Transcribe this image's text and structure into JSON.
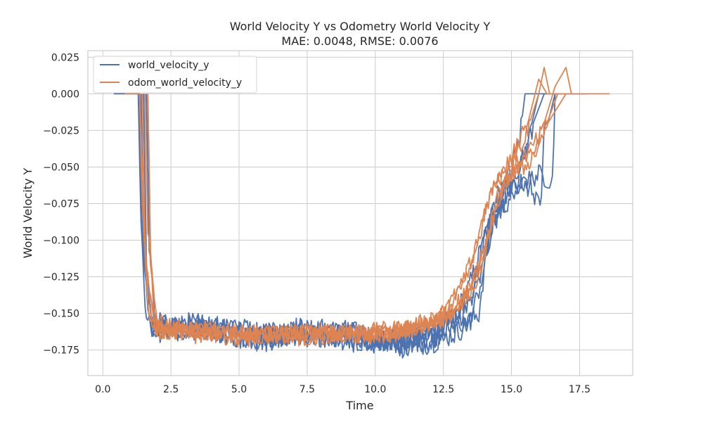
{
  "chart_data": {
    "type": "line",
    "title": "World Velocity Y vs Odometry World Velocity Y",
    "subtitle": "MAE: 0.0048, RMSE: 0.0076",
    "xlabel": "Time",
    "ylabel": "World Velocity Y",
    "xlim": [
      -0.55,
      19.45
    ],
    "ylim": [
      -0.1925,
      0.0295
    ],
    "xticks": [
      0,
      2.5,
      5,
      7.5,
      10,
      12.5,
      15,
      17.5
    ],
    "xtick_labels": [
      "0.0",
      "2.5",
      "5.0",
      "7.5",
      "10.0",
      "12.5",
      "15.0",
      "17.5"
    ],
    "yticks": [
      0.025,
      0.0,
      -0.025,
      -0.05,
      -0.075,
      -0.1,
      -0.125,
      -0.15,
      -0.175
    ],
    "ytick_labels": [
      "0.025",
      "0.000",
      "−0.025",
      "−0.050",
      "−0.075",
      "−0.100",
      "−0.125",
      "−0.150",
      "−0.175"
    ],
    "grid": true,
    "legend_position": "top-left",
    "series": [
      {
        "name": "world_velocity_y",
        "color": "#4c72b0",
        "runs": [
          {
            "x": [
              0.4,
              1.3,
              1.5,
              1.8,
              2.2,
              3.0,
              4.0,
              5.0,
              6.0,
              7.0,
              8.0,
              9.0,
              10.0,
              11.0,
              12.0,
              12.5,
              13.0,
              13.5,
              14.0,
              14.5,
              15.0,
              15.3,
              15.5,
              16.0,
              17.8
            ],
            "y": [
              0.0,
              0.0,
              -0.12,
              -0.16,
              -0.158,
              -0.162,
              -0.16,
              -0.165,
              -0.168,
              -0.163,
              -0.165,
              -0.167,
              -0.17,
              -0.172,
              -0.168,
              -0.16,
              -0.15,
              -0.13,
              -0.1,
              -0.07,
              -0.05,
              -0.03,
              0.0,
              0.0,
              0.0
            ],
            "noise": 0.009
          },
          {
            "x": [
              1.3,
              1.4,
              1.6,
              2.0,
              3.0,
              4.0,
              5.0,
              6.0,
              7.0,
              8.0,
              9.0,
              10.0,
              11.0,
              12.0,
              12.8,
              13.5,
              14.0,
              14.5,
              15.0,
              15.5,
              16.0
            ],
            "y": [
              0.0,
              -0.09,
              -0.155,
              -0.16,
              -0.158,
              -0.16,
              -0.165,
              -0.168,
              -0.16,
              -0.165,
              -0.163,
              -0.168,
              -0.17,
              -0.166,
              -0.158,
              -0.14,
              -0.1,
              -0.07,
              -0.06,
              -0.04,
              0.0
            ],
            "noise": 0.009
          },
          {
            "x": [
              1.4,
              1.5,
              1.7,
              2.2,
              3.0,
              4.0,
              5.0,
              6.0,
              7.0,
              8.0,
              9.0,
              10.0,
              11.0,
              12.0,
              13.0,
              13.8,
              14.2,
              14.8,
              15.2,
              15.8,
              16.2
            ],
            "y": [
              0.0,
              -0.1,
              -0.158,
              -0.163,
              -0.16,
              -0.162,
              -0.166,
              -0.164,
              -0.163,
              -0.165,
              -0.168,
              -0.166,
              -0.172,
              -0.17,
              -0.163,
              -0.15,
              -0.09,
              -0.075,
              -0.06,
              -0.02,
              0.0
            ],
            "noise": 0.008
          },
          {
            "x": [
              1.5,
              1.6,
              1.8,
              2.5,
              3.5,
              4.5,
              5.5,
              6.5,
              7.5,
              8.5,
              9.5,
              10.5,
              11.5,
              12.5,
              13.5,
              14.0,
              14.5,
              15.0,
              15.5,
              16.0,
              16.5,
              16.6
            ],
            "y": [
              0.0,
              -0.12,
              -0.16,
              -0.158,
              -0.162,
              -0.16,
              -0.165,
              -0.167,
              -0.163,
              -0.166,
              -0.168,
              -0.17,
              -0.166,
              -0.162,
              -0.155,
              -0.12,
              -0.075,
              -0.065,
              -0.06,
              -0.055,
              -0.06,
              0.0
            ],
            "noise": 0.007
          },
          {
            "x": [
              1.6,
              1.7,
              1.9,
              2.5,
              3.5,
              4.5,
              5.5,
              6.5,
              7.5,
              8.5,
              9.5,
              10.5,
              11.5,
              12.5,
              13.2,
              13.8,
              14.3,
              14.8,
              15.3,
              15.7,
              16.1,
              16.2,
              16.6
            ],
            "y": [
              0.0,
              -0.1,
              -0.155,
              -0.16,
              -0.158,
              -0.162,
              -0.16,
              -0.165,
              -0.16,
              -0.163,
              -0.165,
              -0.168,
              -0.165,
              -0.158,
              -0.15,
              -0.13,
              -0.09,
              -0.07,
              -0.06,
              -0.065,
              -0.075,
              -0.03,
              0.0
            ],
            "noise": 0.008
          }
        ]
      },
      {
        "name": "odom_world_velocity_y",
        "color": "#dd8452",
        "runs": [
          {
            "x": [
              0.8,
              1.35,
              1.55,
              1.9,
              2.5,
              3.5,
              4.5,
              5.5,
              6.5,
              7.5,
              8.5,
              9.5,
              10.5,
              11.5,
              12.5,
              13.2,
              13.8,
              14.2,
              14.8,
              15.2,
              15.6,
              16.0,
              16.3,
              18.6
            ],
            "y": [
              0.0,
              0.0,
              -0.11,
              -0.16,
              -0.162,
              -0.165,
              -0.163,
              -0.166,
              -0.165,
              -0.167,
              -0.165,
              -0.166,
              -0.163,
              -0.16,
              -0.15,
              -0.13,
              -0.1,
              -0.07,
              -0.05,
              -0.035,
              -0.02,
              0.01,
              0.0,
              0.0
            ],
            "noise": 0.006
          },
          {
            "x": [
              1.35,
              1.45,
              1.7,
              2.1,
              3.0,
              4.0,
              5.0,
              6.0,
              7.0,
              8.0,
              9.0,
              10.0,
              11.0,
              12.0,
              12.8,
              13.5,
              14.0,
              14.5,
              15.0,
              15.5,
              16.0,
              16.2,
              16.4
            ],
            "y": [
              0.0,
              -0.08,
              -0.155,
              -0.162,
              -0.16,
              -0.163,
              -0.166,
              -0.164,
              -0.162,
              -0.165,
              -0.163,
              -0.162,
              -0.16,
              -0.155,
              -0.145,
              -0.12,
              -0.08,
              -0.055,
              -0.045,
              -0.03,
              0.0,
              0.018,
              0.0
            ],
            "noise": 0.006
          },
          {
            "x": [
              1.45,
              1.55,
              1.8,
              2.3,
              3.3,
              4.3,
              5.3,
              6.3,
              7.3,
              8.3,
              9.3,
              10.3,
              11.3,
              12.3,
              13.0,
              13.8,
              14.3,
              14.8,
              15.3,
              15.8,
              16.2,
              16.6,
              17.0,
              17.2
            ],
            "y": [
              0.0,
              -0.1,
              -0.158,
              -0.163,
              -0.162,
              -0.165,
              -0.168,
              -0.165,
              -0.163,
              -0.166,
              -0.164,
              -0.165,
              -0.162,
              -0.156,
              -0.148,
              -0.125,
              -0.085,
              -0.06,
              -0.05,
              -0.04,
              -0.02,
              0.005,
              0.018,
              0.0
            ],
            "noise": 0.006
          },
          {
            "x": [
              1.55,
              1.65,
              1.9,
              2.6,
              3.6,
              4.6,
              5.6,
              6.6,
              7.6,
              8.6,
              9.6,
              10.6,
              11.6,
              12.6,
              13.3,
              14.0,
              14.5,
              15.0,
              15.5,
              15.9,
              16.3,
              16.7,
              17.0
            ],
            "y": [
              0.0,
              -0.09,
              -0.155,
              -0.16,
              -0.163,
              -0.162,
              -0.165,
              -0.164,
              -0.166,
              -0.163,
              -0.165,
              -0.164,
              -0.16,
              -0.152,
              -0.14,
              -0.11,
              -0.07,
              -0.055,
              -0.05,
              -0.04,
              -0.02,
              0.0,
              0.0
            ],
            "noise": 0.006
          },
          {
            "x": [
              1.65,
              1.75,
              2.0,
              2.7,
              3.7,
              4.7,
              5.7,
              6.7,
              7.7,
              8.7,
              9.7,
              10.7,
              11.7,
              12.7,
              13.4,
              14.1,
              14.6,
              15.1,
              15.6,
              16.0,
              16.5,
              17.0
            ],
            "y": [
              0.0,
              -0.11,
              -0.16,
              -0.162,
              -0.16,
              -0.165,
              -0.163,
              -0.165,
              -0.162,
              -0.164,
              -0.163,
              -0.162,
              -0.158,
              -0.15,
              -0.135,
              -0.1,
              -0.065,
              -0.05,
              -0.04,
              -0.03,
              -0.015,
              0.0
            ],
            "noise": 0.006
          }
        ]
      }
    ]
  }
}
